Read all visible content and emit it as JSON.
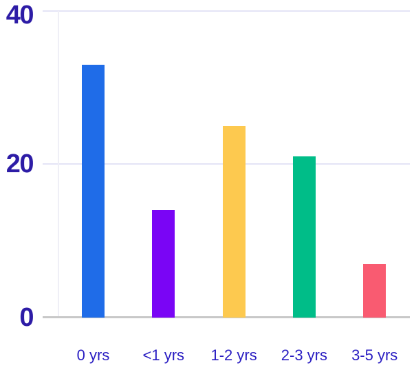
{
  "chart_data": {
    "type": "bar",
    "categories": [
      "0 yrs",
      "<1 yrs",
      "1-2 yrs",
      "2-3 yrs",
      "3-5 yrs"
    ],
    "values": [
      33,
      14,
      25,
      21,
      7
    ],
    "bar_colors": [
      "#1f6ce8",
      "#7a05f5",
      "#fdc94f",
      "#00bd88",
      "#f95b71"
    ],
    "title": "",
    "xlabel": "",
    "ylabel": "",
    "ylim": [
      0,
      40
    ],
    "ytick_labels": [
      "0",
      "20",
      "40"
    ],
    "grid": "horizontal-only",
    "legend_position": "none",
    "colors": {
      "y_tick_label": "#2d1ca6",
      "x_tick_label": "#2a1ec2",
      "gridline": "#e4e4f6",
      "axis_baseline": "#c8c8c8",
      "y_axis_line": "#efeff6",
      "background": "#ffffff"
    }
  }
}
